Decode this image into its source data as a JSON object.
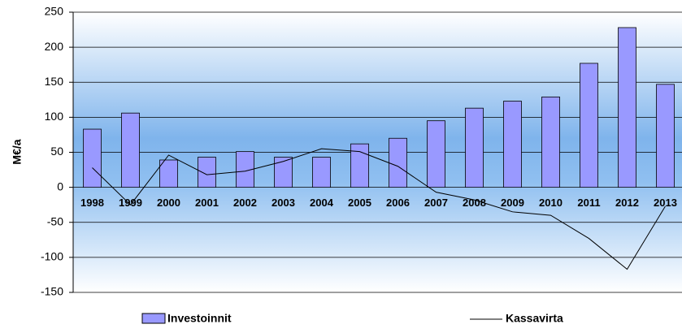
{
  "chart_data": {
    "type": "bar_line",
    "y_label": "M€/a",
    "categories": [
      "1998",
      "1999",
      "2000",
      "2001",
      "2002",
      "2003",
      "2004",
      "2005",
      "2006",
      "2007",
      "2008",
      "2009",
      "2010",
      "2011",
      "2012",
      "2013"
    ],
    "series": [
      {
        "name": "Investoinnit",
        "type": "bar",
        "color": "#9999ff",
        "values": [
          83,
          106,
          39,
          43,
          51,
          43,
          43,
          62,
          70,
          95,
          113,
          123,
          129,
          177,
          228,
          147
        ]
      },
      {
        "name": "Kassavirta",
        "type": "line",
        "color": "#000000",
        "values": [
          28,
          -25,
          46,
          18,
          23,
          37,
          55,
          51,
          30,
          -7,
          -18,
          -35,
          -40,
          -73,
          -117,
          -27
        ]
      }
    ],
    "ylim": [
      -150,
      250
    ],
    "yticks": [
      -150,
      -100,
      -50,
      0,
      50,
      100,
      150,
      200,
      250
    ],
    "grid": true
  }
}
